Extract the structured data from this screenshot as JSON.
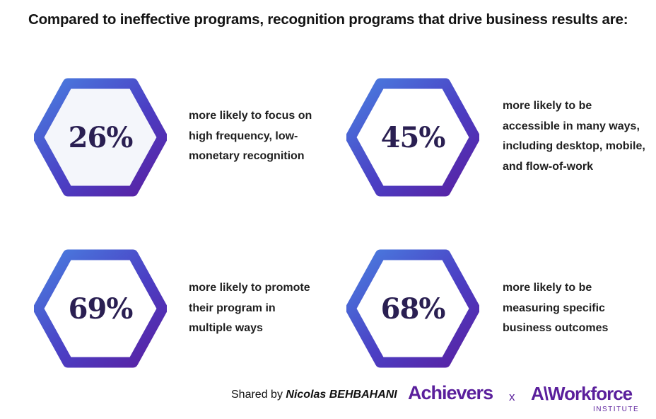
{
  "title": "Compared to ineffective programs, recognition programs that drive business results are:",
  "stats": [
    {
      "value": "26%",
      "lines": [
        "more likely to focus on",
        "high frequency, low-",
        "monetary recognition"
      ]
    },
    {
      "value": "45%",
      "lines": [
        "more likely to be",
        "accessible in many ways,",
        "including desktop, mobile,",
        "and flow-of-work"
      ]
    },
    {
      "value": "69%",
      "lines": [
        "more likely to promote",
        "their program in",
        "multiple ways"
      ]
    },
    {
      "value": "68%",
      "lines": [
        "more likely to be",
        "measuring specific",
        "business outcomes"
      ]
    }
  ],
  "footer": {
    "shared_prefix": "Shared by",
    "author": "Nicolas BEHBAHANI",
    "logo_achievers": "Achievers",
    "separator": "x",
    "logo_workforce": "A\\Workforce",
    "logo_institute": "INSTITUTE"
  },
  "colors": {
    "hex_gradient_start": "#4a7fe0",
    "hex_gradient_end": "#5a1fa0",
    "hex_fill": "#f4f6fb",
    "brand_purple": "#5a1f9c"
  }
}
